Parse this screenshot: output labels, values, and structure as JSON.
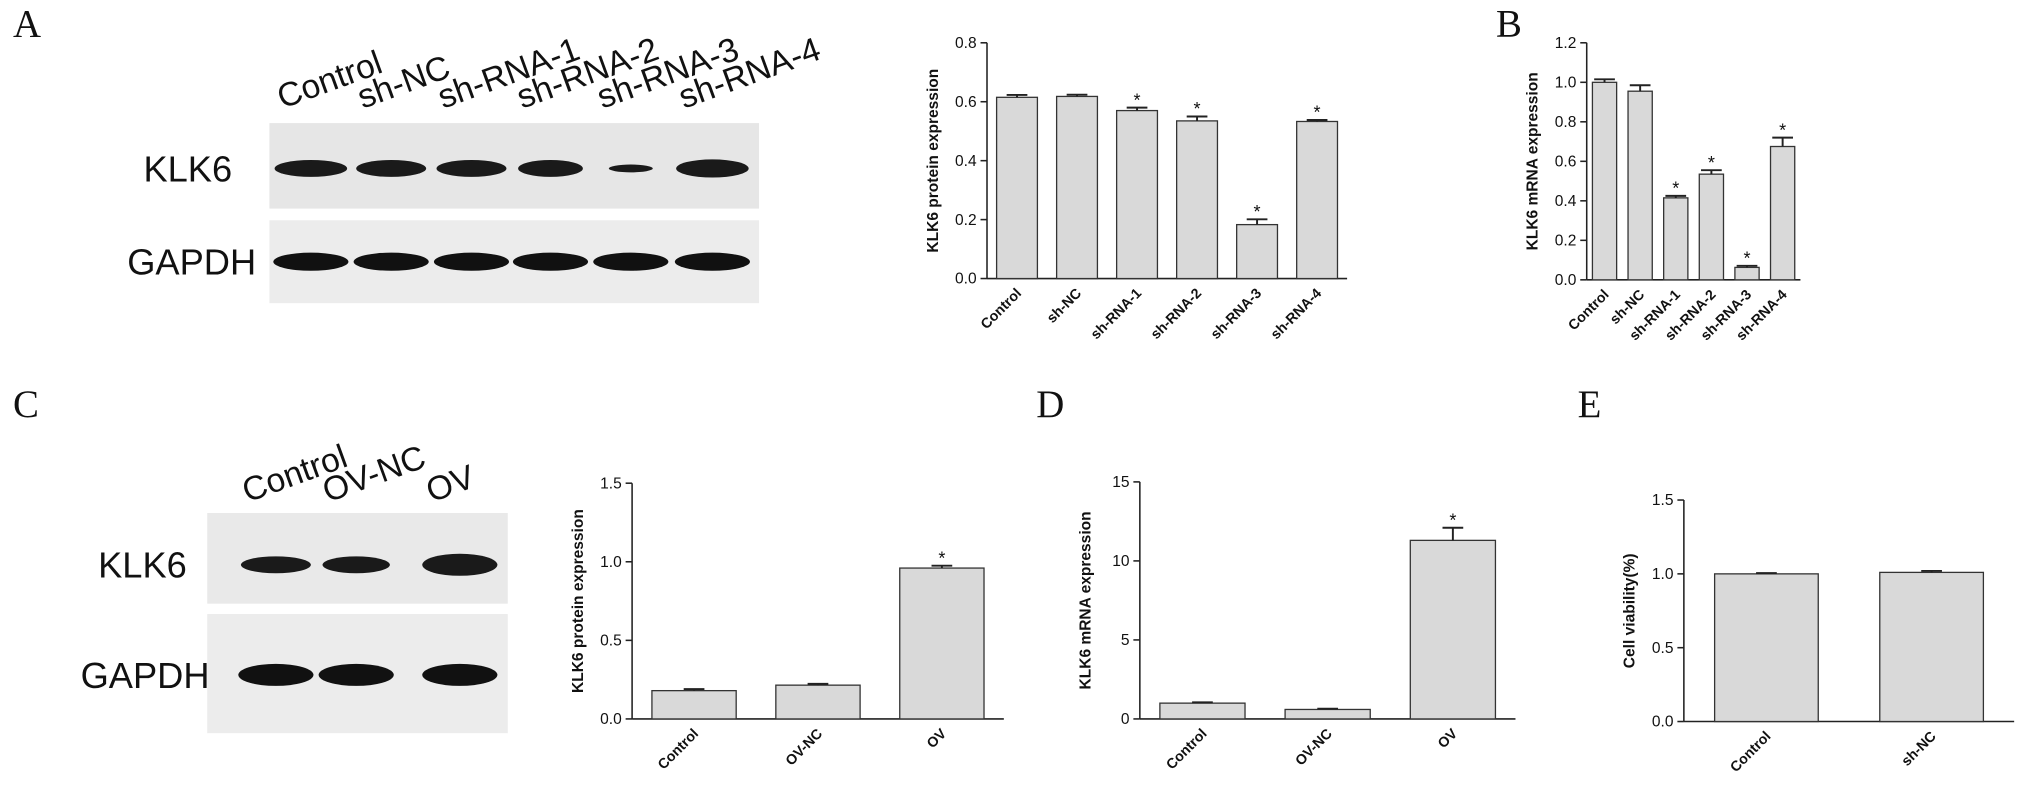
{
  "panel_labels": [
    "A",
    "B",
    "C",
    "D",
    "E"
  ],
  "blots": [
    {
      "lanes": [
        "Control",
        "sh-NC",
        "sh-RNA-1",
        "sh-RNA-2",
        "sh-RNA-3",
        "sh-RNA-4"
      ],
      "rows": [
        "KLK6",
        "GAPDH"
      ]
    },
    {
      "lanes": [
        "Control",
        "OV-NC",
        "OV"
      ],
      "rows": [
        "KLK6",
        "GAPDH"
      ]
    }
  ],
  "chart_data": [
    {
      "type": "bar",
      "ylabel": "KLK6 protein expression",
      "categories": [
        "Control",
        "sh-NC",
        "sh-RNA-1",
        "sh-RNA-2",
        "sh-RNA-3",
        "sh-RNA-4"
      ],
      "values": [
        0.615,
        0.618,
        0.57,
        0.535,
        0.183,
        0.533
      ],
      "errors": [
        0.008,
        0.006,
        0.01,
        0.015,
        0.018,
        0.005
      ],
      "significant": [
        2,
        3,
        4,
        5
      ],
      "marker": "*",
      "color": "#d9d9d9",
      "ylim": [
        0,
        0.8
      ],
      "yticks": [
        {
          "value": 0,
          "label": "0.0"
        },
        0.2,
        0.4,
        0.6,
        0.8
      ]
    },
    {
      "type": "bar",
      "ylabel": "KLK6 mRNA expression",
      "categories": [
        "Control",
        "sh-NC",
        "sh-RNA-1",
        "sh-RNA-2",
        "sh-RNA-3",
        "sh-RNA-4"
      ],
      "values": [
        1.0,
        0.955,
        0.415,
        0.535,
        0.063,
        0.675
      ],
      "errors": [
        0.015,
        0.03,
        0.01,
        0.02,
        0.008,
        0.045
      ],
      "significant": [
        2,
        3,
        4,
        5
      ],
      "marker": "*",
      "color": "#d9d9d9",
      "ylim": [
        0,
        1.2
      ],
      "yticks": [
        {
          "value": 0,
          "label": "0.0"
        },
        0.2,
        0.4,
        0.6,
        0.8,
        {
          "value": 1,
          "label": "1.0"
        },
        1.2
      ]
    },
    {
      "type": "bar",
      "ylabel": "KLK6 protein expression",
      "categories": [
        "Control",
        "OV-NC",
        "OV"
      ],
      "values": [
        0.18,
        0.215,
        0.96
      ],
      "errors": [
        0.01,
        0.008,
        0.015
      ],
      "significant": [
        2
      ],
      "marker": "*",
      "color": "#d9d9d9",
      "ylim": [
        0,
        1.5
      ],
      "yticks": [
        {
          "value": 0,
          "label": "0.0"
        },
        0.5,
        {
          "value": 1,
          "label": "1.0"
        },
        1.5
      ]
    },
    {
      "type": "bar",
      "ylabel": "KLK6 mRNA expression",
      "categories": [
        "Control",
        "OV-NC",
        "OV"
      ],
      "values": [
        1.0,
        0.6,
        11.3
      ],
      "errors": [
        0.05,
        0.05,
        0.8
      ],
      "significant": [
        2
      ],
      "marker": "*",
      "color": "#d9d9d9",
      "ylim": [
        0,
        15
      ],
      "yticks": [
        0,
        5,
        10,
        15
      ]
    },
    {
      "type": "bar",
      "ylabel": "Cell viability(%)",
      "categories": [
        "Control",
        "sh-NC"
      ],
      "values": [
        1.0,
        1.01
      ],
      "errors": [
        0.005,
        0.01
      ],
      "color": "#d9d9d9",
      "ylim": [
        0,
        1.5
      ],
      "yticks": [
        {
          "value": 0,
          "label": "0.0"
        },
        0.5,
        {
          "value": 1,
          "label": "1.0"
        },
        1.5
      ]
    }
  ]
}
